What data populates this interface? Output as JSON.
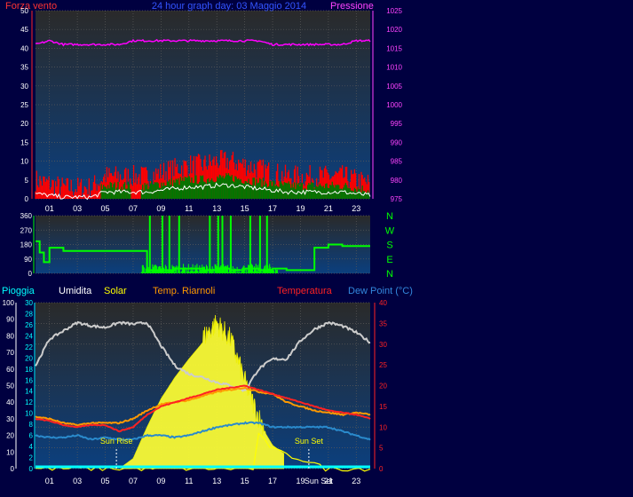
{
  "title": "24 hour graph day: 03 Maggio 2014",
  "colors": {
    "background": "#000040",
    "grid": "#5a5a5a",
    "wind": "#ff0000",
    "gust_fill": "#007700",
    "avg_wind": "#ffffff",
    "pressure": "#ff00ff",
    "direction": "#00ff00",
    "humidity": "#cccccc",
    "solar": "#ffff00",
    "riarnoli": "#ff9900",
    "temperature": "#ff2222",
    "dewpoint": "#2a8acc",
    "rain": "#00ffff"
  },
  "panels": {
    "wind": {
      "left_label": "Forza vento",
      "right_label": "Pressione",
      "left_ticks": [
        "0",
        "5",
        "10",
        "15",
        "20",
        "25",
        "30",
        "35",
        "40",
        "45",
        "50"
      ],
      "right_ticks": [
        "975",
        "980",
        "985",
        "990",
        "995",
        "1000",
        "1005",
        "1010",
        "1015",
        "1020",
        "1025"
      ],
      "x_ticks": [
        "01",
        "03",
        "05",
        "07",
        "09",
        "11",
        "13",
        "15",
        "17",
        "19",
        "21",
        "23"
      ]
    },
    "direction": {
      "left_ticks": [
        "0",
        "90",
        "180",
        "270",
        "360"
      ],
      "right_ticks": [
        "N",
        "W",
        "S",
        "E",
        "N"
      ]
    },
    "temp": {
      "legend": {
        "rain": "Pioggia",
        "humidity": "Umidita",
        "solar": "Solar",
        "riarnoli": "Temp. Riarnoli",
        "temperature": "Temperatura",
        "dewpoint": "Dew Point (°C)"
      },
      "humidity_ticks": [
        "0",
        "10",
        "20",
        "30",
        "40",
        "50",
        "60",
        "70",
        "80",
        "90",
        "100"
      ],
      "rain_ticks": [
        "0",
        "2",
        "4",
        "6",
        "8",
        "10",
        "12",
        "14",
        "16",
        "18",
        "20",
        "22",
        "24",
        "26",
        "28",
        "30"
      ],
      "temp_ticks": [
        "0",
        "5",
        "10",
        "15",
        "20",
        "25",
        "30",
        "35",
        "40"
      ],
      "x_ticks": [
        "01",
        "03",
        "05",
        "07",
        "09",
        "11",
        "13",
        "15",
        "17",
        "19",
        "21",
        "23"
      ],
      "sun_rise_label": "Sun Rise",
      "sun_set_label": "Sun Set",
      "sun_set_axis_label": "Sun Set"
    }
  },
  "chart_data": [
    {
      "type": "line",
      "name": "wind-pressure",
      "x": [
        0,
        1,
        2,
        3,
        4,
        5,
        6,
        7,
        8,
        9,
        10,
        11,
        12,
        13,
        14,
        15,
        16,
        17,
        18,
        19,
        20,
        21,
        22,
        23,
        24
      ],
      "series": [
        {
          "name": "Forza vento",
          "axis": "left",
          "values": [
            3,
            2,
            1,
            1,
            1,
            4,
            4,
            4,
            4,
            5,
            6,
            7,
            7,
            8,
            8,
            7,
            6,
            5,
            4,
            4,
            4,
            4,
            4,
            3,
            2
          ]
        },
        {
          "name": "Pressione",
          "axis": "right",
          "values": [
            1016,
            1017,
            1016,
            1016,
            1016,
            1016,
            1016,
            1017,
            1017,
            1017,
            1017,
            1017,
            1017,
            1017,
            1017,
            1017,
            1017,
            1016,
            1016,
            1016,
            1016,
            1016,
            1016,
            1017,
            1017
          ]
        }
      ],
      "ylim_left": [
        0,
        50
      ],
      "ylim_right": [
        975,
        1025
      ]
    },
    {
      "type": "line",
      "name": "wind-direction",
      "x": [
        0,
        0.3,
        0.6,
        1,
        2,
        3,
        4,
        5,
        6,
        6.5,
        7,
        8,
        9,
        10,
        11,
        12,
        13,
        14,
        15,
        16,
        17,
        18,
        19,
        20,
        21,
        22,
        23,
        24
      ],
      "series": [
        {
          "name": "direction",
          "values": [
            200,
            130,
            70,
            160,
            140,
            140,
            140,
            140,
            140,
            140,
            140,
            20,
            20,
            30,
            30,
            20,
            30,
            20,
            30,
            20,
            30,
            20,
            20,
            160,
            180,
            170,
            170,
            170
          ]
        }
      ],
      "ylim": [
        0,
        360
      ]
    },
    {
      "type": "line",
      "name": "temperature-humidity",
      "x": [
        0,
        1,
        2,
        3,
        4,
        5,
        6,
        7,
        8,
        9,
        10,
        11,
        12,
        13,
        14,
        15,
        16,
        17,
        18,
        19,
        20,
        21,
        22,
        23,
        24
      ],
      "series": [
        {
          "name": "Umidita",
          "axis": "humidity",
          "values": [
            62,
            78,
            83,
            88,
            86,
            85,
            88,
            87,
            88,
            74,
            62,
            57,
            55,
            52,
            50,
            47,
            60,
            66,
            66,
            77,
            84,
            88,
            86,
            82,
            76
          ]
        },
        {
          "name": "Temperatura",
          "axis": "temp",
          "values": [
            12,
            11.5,
            10.5,
            10,
            10.5,
            10.5,
            9,
            10,
            13,
            15,
            16,
            17,
            18,
            19,
            19.5,
            20,
            19,
            18,
            17,
            16,
            15,
            14,
            13.5,
            13,
            12
          ]
        },
        {
          "name": "Temp. Riarnoli",
          "axis": "temp",
          "values": [
            12.5,
            12,
            11,
            10.5,
            11,
            11,
            11,
            12,
            14,
            15.5,
            16,
            16.5,
            17.5,
            18.5,
            19,
            19.5,
            18.5,
            18,
            16,
            15,
            14,
            13.5,
            13,
            13.5,
            13
          ]
        },
        {
          "name": "Dew Point (°C)",
          "axis": "temp",
          "values": [
            8,
            7.5,
            7.5,
            8,
            7,
            7.5,
            7,
            7,
            8,
            8,
            7.5,
            8,
            9,
            10,
            10.5,
            11,
            11,
            10,
            10,
            10,
            10,
            10,
            9,
            8,
            7
          ]
        },
        {
          "name": "Solar",
          "axis": "humidity",
          "values": [
            0,
            0,
            0,
            0,
            0,
            0,
            0,
            6,
            25,
            42,
            55,
            66,
            76,
            85,
            75,
            50,
            28,
            14,
            8,
            5,
            2,
            0,
            0,
            0,
            0
          ]
        },
        {
          "name": "Pioggia",
          "axis": "rain",
          "values": [
            0,
            0,
            0,
            0,
            0,
            0,
            0,
            0,
            0,
            0,
            0,
            0,
            0,
            0,
            0,
            0,
            0,
            0,
            0,
            0,
            0,
            0,
            0,
            0,
            0
          ]
        }
      ],
      "ylim_humidity": [
        0,
        100
      ],
      "ylim_rain": [
        0,
        30
      ],
      "ylim_temp": [
        0,
        40
      ]
    }
  ]
}
